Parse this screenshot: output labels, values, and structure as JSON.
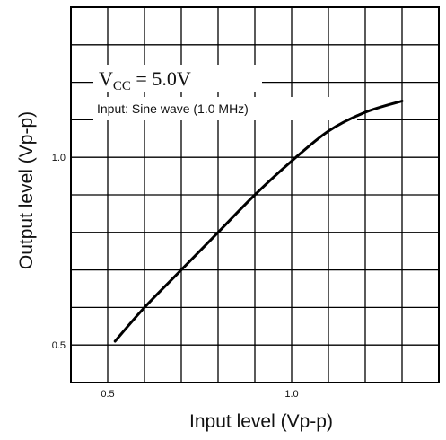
{
  "chart_data": {
    "type": "line",
    "title": "",
    "xlabel": "Input level (Vp-p)",
    "ylabel": "Output level (Vp-p)",
    "xlim": [
      0.4,
      1.4
    ],
    "ylim": [
      0.4,
      1.4
    ],
    "x_ticks": [
      {
        "value": 0.5,
        "label": "0.5"
      },
      {
        "value": 1.0,
        "label": "1.0"
      }
    ],
    "y_ticks": [
      {
        "value": 0.5,
        "label": "0.5"
      },
      {
        "value": 1.0,
        "label": "1.0"
      }
    ],
    "grid": true,
    "grid_step": 0.1,
    "annotations": {
      "vcc_main": "V",
      "vcc_sub": "CC",
      "vcc_rest": " = 5.0V",
      "input_condition": "Input: Sine wave (1.0 MHz)"
    },
    "series": [
      {
        "x": [
          0.52,
          0.6,
          0.7,
          0.8,
          0.9,
          1.0,
          1.1,
          1.2,
          1.3
        ],
        "y": [
          0.51,
          0.6,
          0.7,
          0.8,
          0.9,
          0.99,
          1.07,
          1.12,
          1.15
        ]
      }
    ],
    "line_color": "#000000",
    "grid_color": "#000000"
  }
}
